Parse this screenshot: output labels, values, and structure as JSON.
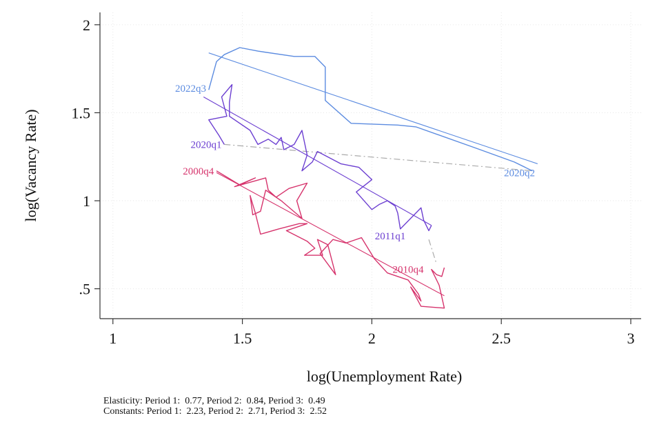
{
  "chart_data": {
    "type": "line",
    "xlabel": "log(Unemployment Rate)",
    "ylabel": "log(Vacancy Rate)",
    "xlim": [
      0.95,
      3.04
    ],
    "ylim": [
      0.33,
      2.07
    ],
    "xticks": [
      1,
      1.5,
      2,
      2.5,
      3
    ],
    "xtick_labels": [
      "1",
      "1.5",
      "2",
      "2.5",
      "3"
    ],
    "yticks": [
      0.5,
      1,
      1.5,
      2
    ],
    "ytick_labels": [
      ".5",
      "1",
      "1.5",
      "2"
    ],
    "grid": true,
    "series": [
      {
        "period": 1,
        "color": "#d6336c",
        "points": [
          [
            1.4,
            1.17
          ],
          [
            1.49,
            1.09
          ],
          [
            1.55,
            1.13
          ],
          [
            1.47,
            1.08
          ],
          [
            1.59,
            1.13
          ],
          [
            1.6,
            1.06
          ],
          [
            1.63,
            1.02
          ],
          [
            1.68,
            1.07
          ],
          [
            1.75,
            1.1
          ],
          [
            1.71,
            1.0
          ],
          [
            1.73,
            0.9
          ],
          [
            1.65,
            1.0
          ],
          [
            1.59,
            1.06
          ],
          [
            1.57,
            0.94
          ],
          [
            1.54,
            0.92
          ],
          [
            1.53,
            1.03
          ],
          [
            1.55,
            0.93
          ],
          [
            1.57,
            0.81
          ],
          [
            1.64,
            0.84
          ],
          [
            1.72,
            0.87
          ],
          [
            1.75,
            0.87
          ],
          [
            1.67,
            0.83
          ],
          [
            1.75,
            0.77
          ],
          [
            1.78,
            0.73
          ],
          [
            1.74,
            0.69
          ],
          [
            1.81,
            0.69
          ],
          [
            1.79,
            0.78
          ],
          [
            1.83,
            0.75
          ],
          [
            1.86,
            0.58
          ],
          [
            1.8,
            0.7
          ],
          [
            1.85,
            0.78
          ],
          [
            1.9,
            0.76
          ],
          [
            1.96,
            0.79
          ],
          [
            2.01,
            0.67
          ],
          [
            2.06,
            0.59
          ],
          [
            2.14,
            0.55
          ],
          [
            2.18,
            0.47
          ],
          [
            2.19,
            0.43
          ],
          [
            2.15,
            0.51
          ],
          [
            2.19,
            0.4
          ],
          [
            2.28,
            0.39
          ],
          [
            2.26,
            0.52
          ],
          [
            2.23,
            0.61
          ],
          [
            2.25,
            0.58
          ],
          [
            2.27,
            0.57
          ],
          [
            2.28,
            0.62
          ]
        ],
        "fit": [
          [
            1.4,
            1.16
          ],
          [
            2.28,
            0.46
          ]
        ],
        "start_label": "2000q4",
        "end_label": "2010q4"
      },
      {
        "period": 2,
        "color": "#6c3fd1",
        "points": [
          [
            1.43,
            1.32
          ],
          [
            1.41,
            1.37
          ],
          [
            1.37,
            1.46
          ],
          [
            1.44,
            1.48
          ],
          [
            1.42,
            1.59
          ],
          [
            1.46,
            1.66
          ],
          [
            1.45,
            1.56
          ],
          [
            1.45,
            1.48
          ],
          [
            1.53,
            1.4
          ],
          [
            1.56,
            1.32
          ],
          [
            1.6,
            1.35
          ],
          [
            1.63,
            1.32
          ],
          [
            1.65,
            1.36
          ],
          [
            1.66,
            1.29
          ],
          [
            1.7,
            1.32
          ],
          [
            1.73,
            1.4
          ],
          [
            1.75,
            1.26
          ],
          [
            1.73,
            1.17
          ],
          [
            1.77,
            1.22
          ],
          [
            1.79,
            1.28
          ],
          [
            1.88,
            1.21
          ],
          [
            1.95,
            1.19
          ],
          [
            2.0,
            1.12
          ],
          [
            1.94,
            1.05
          ],
          [
            2.0,
            0.95
          ],
          [
            2.03,
            0.98
          ],
          [
            2.06,
            1.0
          ],
          [
            2.09,
            0.97
          ],
          [
            2.1,
            0.93
          ],
          [
            2.11,
            0.84
          ],
          [
            2.19,
            0.96
          ],
          [
            2.2,
            0.89
          ],
          [
            2.22,
            0.83
          ],
          [
            2.23,
            0.86
          ]
        ],
        "fit": [
          [
            1.35,
            1.59
          ],
          [
            2.23,
            0.86
          ]
        ],
        "start_label": "2011q1",
        "end_label": "2020q1"
      },
      {
        "period": 3,
        "color": "#5b8be0",
        "points": [
          [
            1.37,
            1.63
          ],
          [
            1.4,
            1.79
          ],
          [
            1.43,
            1.83
          ],
          [
            1.49,
            1.87
          ],
          [
            1.56,
            1.85
          ],
          [
            1.7,
            1.82
          ],
          [
            1.78,
            1.82
          ],
          [
            1.82,
            1.76
          ],
          [
            1.82,
            1.57
          ],
          [
            1.92,
            1.44
          ],
          [
            2.1,
            1.43
          ],
          [
            2.17,
            1.42
          ],
          [
            2.4,
            1.3
          ],
          [
            2.55,
            1.22
          ],
          [
            2.62,
            1.17
          ]
        ],
        "fit": [
          [
            1.37,
            1.84
          ],
          [
            2.64,
            1.21
          ]
        ],
        "start_label": "2020q2",
        "end_label": "2022q3"
      }
    ],
    "connectors": [
      [
        [
          1.43,
          1.32
        ],
        [
          2.62,
          1.17
        ]
      ],
      [
        [
          2.22,
          0.78
        ],
        [
          2.25,
          0.64
        ]
      ]
    ],
    "annotations": [
      {
        "text": "2022q3",
        "x": 1.36,
        "y": 1.62,
        "anchor": "end",
        "color": "#5b8be0"
      },
      {
        "text": "2020q1",
        "x": 1.42,
        "y": 1.3,
        "anchor": "end",
        "color": "#6c3fd1"
      },
      {
        "text": "2000q4",
        "x": 1.39,
        "y": 1.15,
        "anchor": "end",
        "color": "#d6336c"
      },
      {
        "text": "2020q2",
        "x": 2.63,
        "y": 1.14,
        "anchor": "end",
        "color": "#5b8be0"
      },
      {
        "text": "2011q1",
        "x": 2.13,
        "y": 0.78,
        "anchor": "end",
        "color": "#6c3fd1"
      },
      {
        "text": "2010q4",
        "x": 2.2,
        "y": 0.59,
        "anchor": "end",
        "color": "#d6336c"
      }
    ]
  },
  "footnotes": {
    "line1": "Elasticity: Period 1:  0.77, Period 2:  0.84, Period 3:  0.49",
    "line2": "Constants: Period 1:  2.23, Period 2:  2.71, Period 3:  2.52"
  }
}
